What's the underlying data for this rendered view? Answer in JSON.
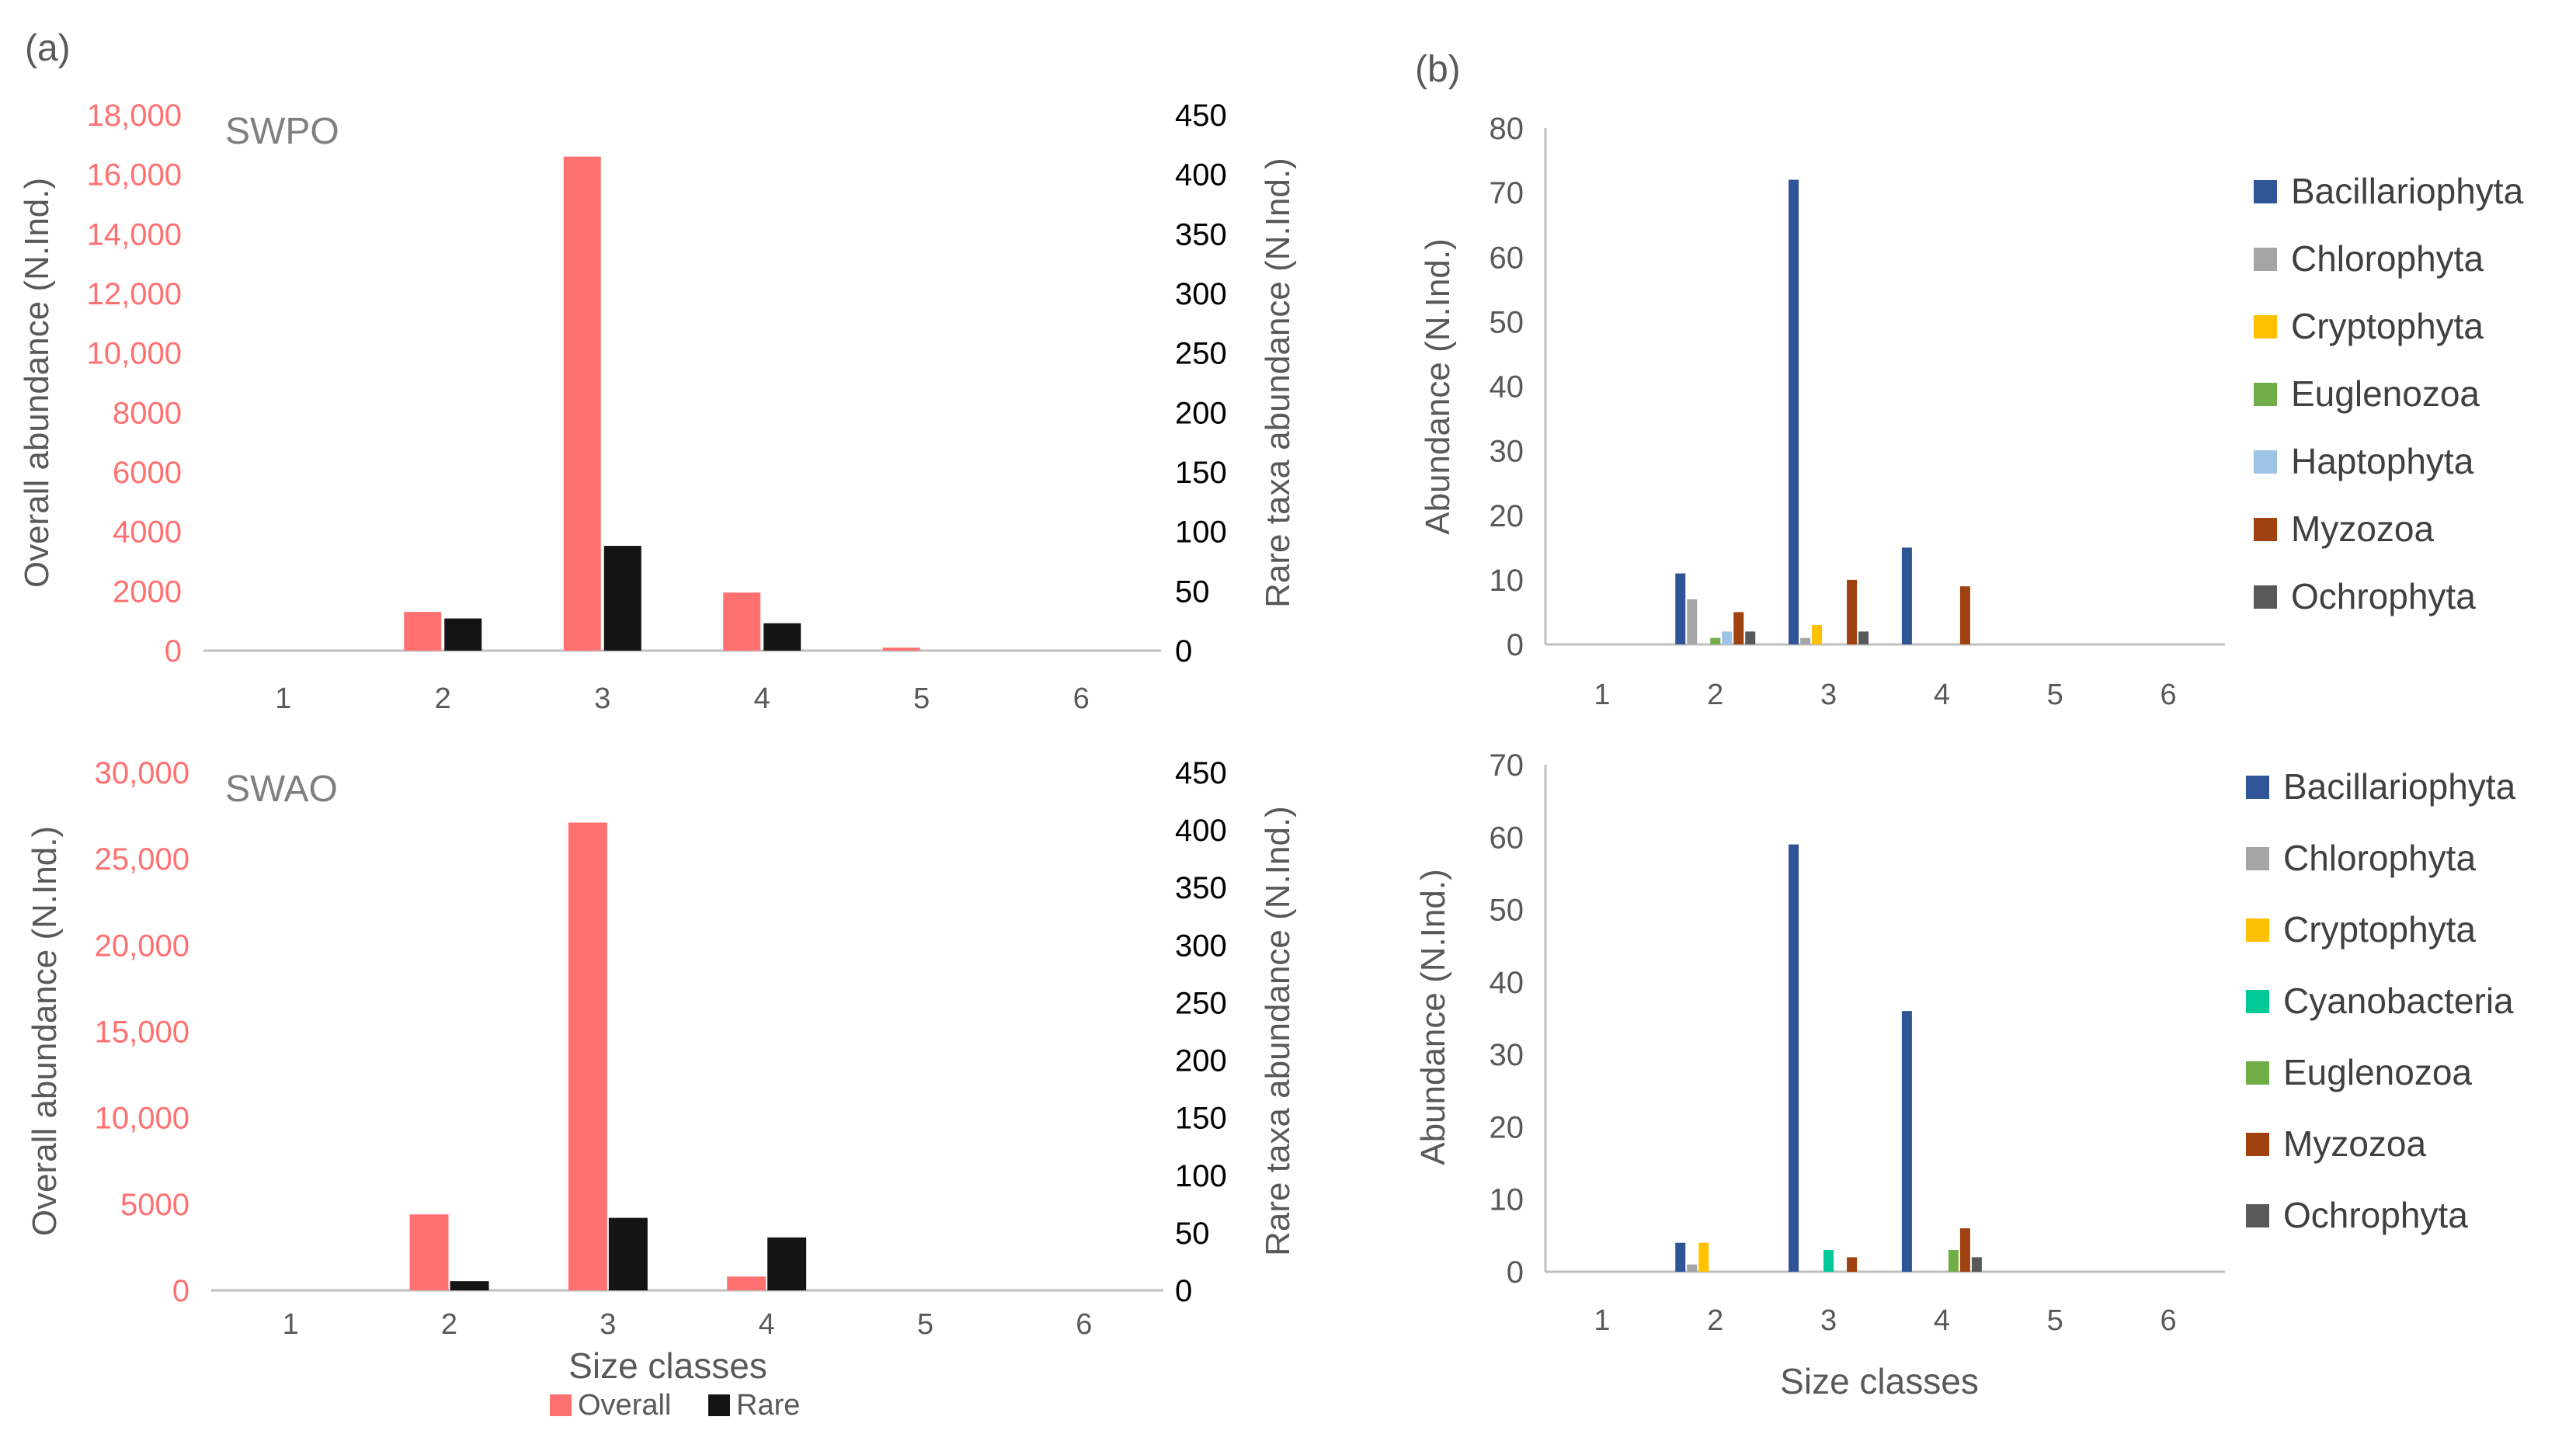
{
  "panel_labels": {
    "a": "(a)",
    "b": "(b)"
  },
  "colors": {
    "overall": "#FF7070",
    "rare": "#141414",
    "axis": "#bfbfbf",
    "tick_text": "#595959",
    "Bacillariophyta": "#2F5597",
    "Chlorophyta": "#A5A5A5",
    "Cryptophyta": "#FFC000",
    "Cyanobacteria": "#00C896",
    "Euglenozoa": "#70AD47",
    "Haptophyta": "#9DC3E6",
    "Myzozoa": "#A0420F",
    "Ochrophyta": "#595959"
  },
  "chart_data": [
    {
      "id": "a-top",
      "type": "bar",
      "site_label": "SWPO",
      "categories": [
        "1",
        "2",
        "3",
        "4",
        "5",
        "6"
      ],
      "xlabel": "",
      "ylabel_left": "Overall abundance (N.Ind.)",
      "ylabel_right": "Rare taxa abundance (N.Ind.)",
      "ylim_left": [
        0,
        18000
      ],
      "ylim_right": [
        0,
        450
      ],
      "yticks_left": [
        "0",
        "2000",
        "4000",
        "6000",
        "8000",
        "10,000",
        "12,000",
        "14,000",
        "16,000",
        "18,000"
      ],
      "yticks_right": [
        "0",
        "50",
        "100",
        "150",
        "200",
        "250",
        "300",
        "350",
        "400",
        "450"
      ],
      "series": [
        {
          "name": "Overall",
          "axis": "left",
          "values": [
            0,
            1300,
            16600,
            1950,
            100,
            0
          ]
        },
        {
          "name": "Rare",
          "axis": "right",
          "values": [
            0,
            27,
            88,
            23,
            0,
            0
          ]
        }
      ]
    },
    {
      "id": "a-bottom",
      "type": "bar",
      "site_label": "SWAO",
      "categories": [
        "1",
        "2",
        "3",
        "4",
        "5",
        "6"
      ],
      "xlabel": "Size classes",
      "ylabel_left": "Overall abundance (N.Ind.)",
      "ylabel_right": "Rare taxa abundance (N.Ind.)",
      "ylim_left": [
        0,
        30000
      ],
      "ylim_right": [
        0,
        450
      ],
      "yticks_left": [
        "0",
        "5000",
        "10,000",
        "15,000",
        "20,000",
        "25,000",
        "30,000"
      ],
      "yticks_right": [
        "0",
        "50",
        "100",
        "150",
        "200",
        "250",
        "300",
        "350",
        "400",
        "450"
      ],
      "legend": [
        "Overall",
        "Rare"
      ],
      "series": [
        {
          "name": "Overall",
          "axis": "left",
          "values": [
            0,
            4400,
            27100,
            800,
            0,
            0
          ]
        },
        {
          "name": "Rare",
          "axis": "right",
          "values": [
            0,
            8,
            63,
            46,
            0,
            0
          ]
        }
      ]
    },
    {
      "id": "b-top",
      "type": "bar",
      "categories": [
        "1",
        "2",
        "3",
        "4",
        "5",
        "6"
      ],
      "xlabel": "",
      "ylabel": "Abundance (N.Ind.)",
      "ylim": [
        0,
        80
      ],
      "yticks": [
        "0",
        "10",
        "20",
        "30",
        "40",
        "50",
        "60",
        "70",
        "80"
      ],
      "series": [
        {
          "name": "Bacillariophyta",
          "values": [
            0,
            11,
            72,
            15,
            0,
            0
          ]
        },
        {
          "name": "Chlorophyta",
          "values": [
            0,
            7,
            1,
            0,
            0,
            0
          ]
        },
        {
          "name": "Cryptophyta",
          "values": [
            0,
            0,
            3,
            0,
            0,
            0
          ]
        },
        {
          "name": "Euglenozoa",
          "values": [
            0,
            1,
            0,
            0,
            0,
            0
          ]
        },
        {
          "name": "Haptophyta",
          "values": [
            0,
            2,
            0,
            0,
            0,
            0
          ]
        },
        {
          "name": "Myzozoa",
          "values": [
            0,
            5,
            10,
            9,
            0,
            0
          ]
        },
        {
          "name": "Ochrophyta",
          "values": [
            0,
            2,
            2,
            0,
            0,
            0
          ]
        }
      ]
    },
    {
      "id": "b-bottom",
      "type": "bar",
      "categories": [
        "1",
        "2",
        "3",
        "4",
        "5",
        "6"
      ],
      "xlabel": "Size classes",
      "ylabel": "Abundance (N.Ind.)",
      "ylim": [
        0,
        70
      ],
      "yticks": [
        "0",
        "10",
        "20",
        "30",
        "40",
        "50",
        "60",
        "70"
      ],
      "series": [
        {
          "name": "Bacillariophyta",
          "values": [
            0,
            4,
            59,
            36,
            0,
            0
          ]
        },
        {
          "name": "Chlorophyta",
          "values": [
            0,
            1,
            0,
            0,
            0,
            0
          ]
        },
        {
          "name": "Cryptophyta",
          "values": [
            0,
            4,
            0,
            0,
            0,
            0
          ]
        },
        {
          "name": "Cyanobacteria",
          "values": [
            0,
            0,
            3,
            0,
            0,
            0
          ]
        },
        {
          "name": "Euglenozoa",
          "values": [
            0,
            0,
            0,
            3,
            0,
            0
          ]
        },
        {
          "name": "Myzozoa",
          "values": [
            0,
            0,
            2,
            6,
            0,
            0
          ]
        },
        {
          "name": "Ochrophyta",
          "values": [
            0,
            0,
            0,
            2,
            0,
            0
          ]
        }
      ]
    }
  ]
}
